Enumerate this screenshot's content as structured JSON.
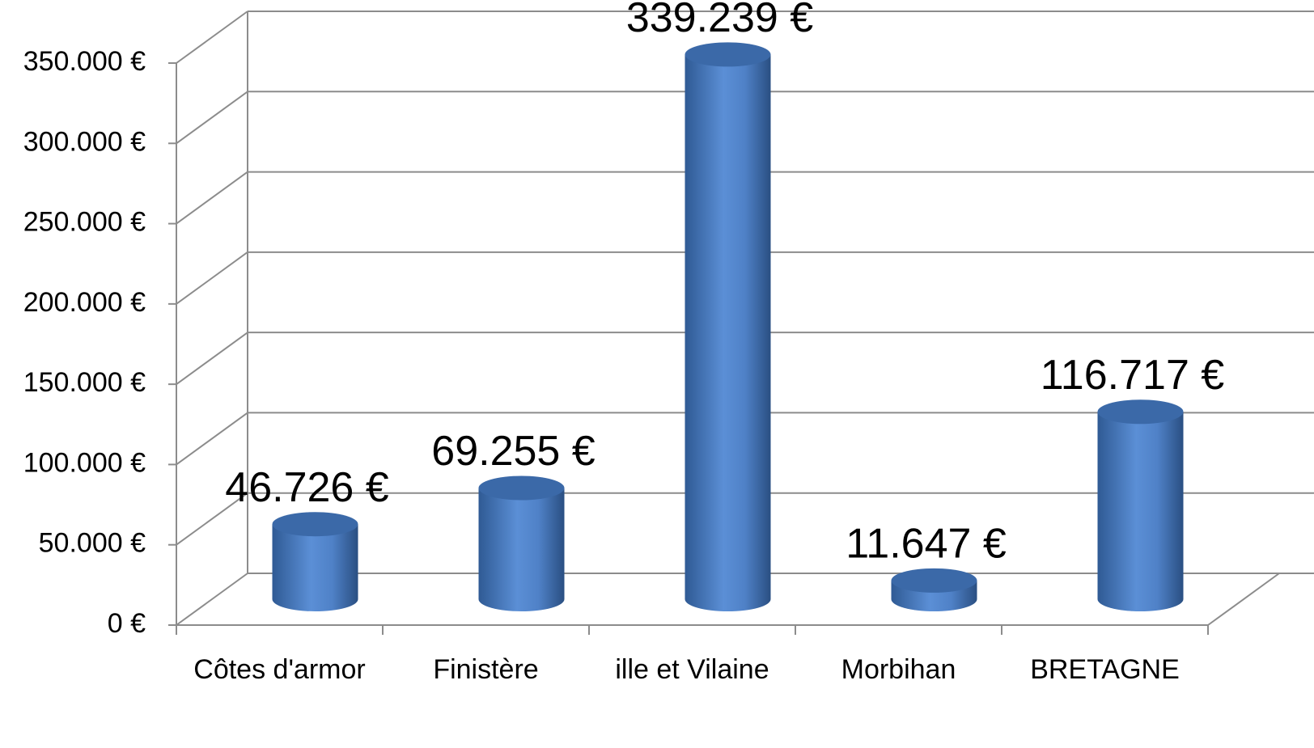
{
  "chart_data": {
    "type": "bar",
    "categories": [
      "Côtes d'armor",
      "Finistère",
      "ille et Vilaine",
      "Morbihan",
      "BRETAGNE"
    ],
    "values": [
      46726,
      69255,
      339239,
      11647,
      116717
    ],
    "value_labels": [
      "46.726 €",
      "69.255 €",
      "339.239 €",
      "11.647 €",
      "116.717 €"
    ],
    "color": "#4f81bd",
    "ylim": [
      0,
      350000
    ],
    "yticks": [
      {
        "value": 0,
        "label": "0 €"
      },
      {
        "value": 50000,
        "label": "50.000 €"
      },
      {
        "value": 100000,
        "label": "100.000 €"
      },
      {
        "value": 150000,
        "label": "150.000 €"
      },
      {
        "value": 200000,
        "label": "200.000 €"
      },
      {
        "value": 250000,
        "label": "250.000 €"
      },
      {
        "value": 300000,
        "label": "300.000 €"
      },
      {
        "value": 350000,
        "label": "350.000 €"
      }
    ],
    "grid": true
  }
}
